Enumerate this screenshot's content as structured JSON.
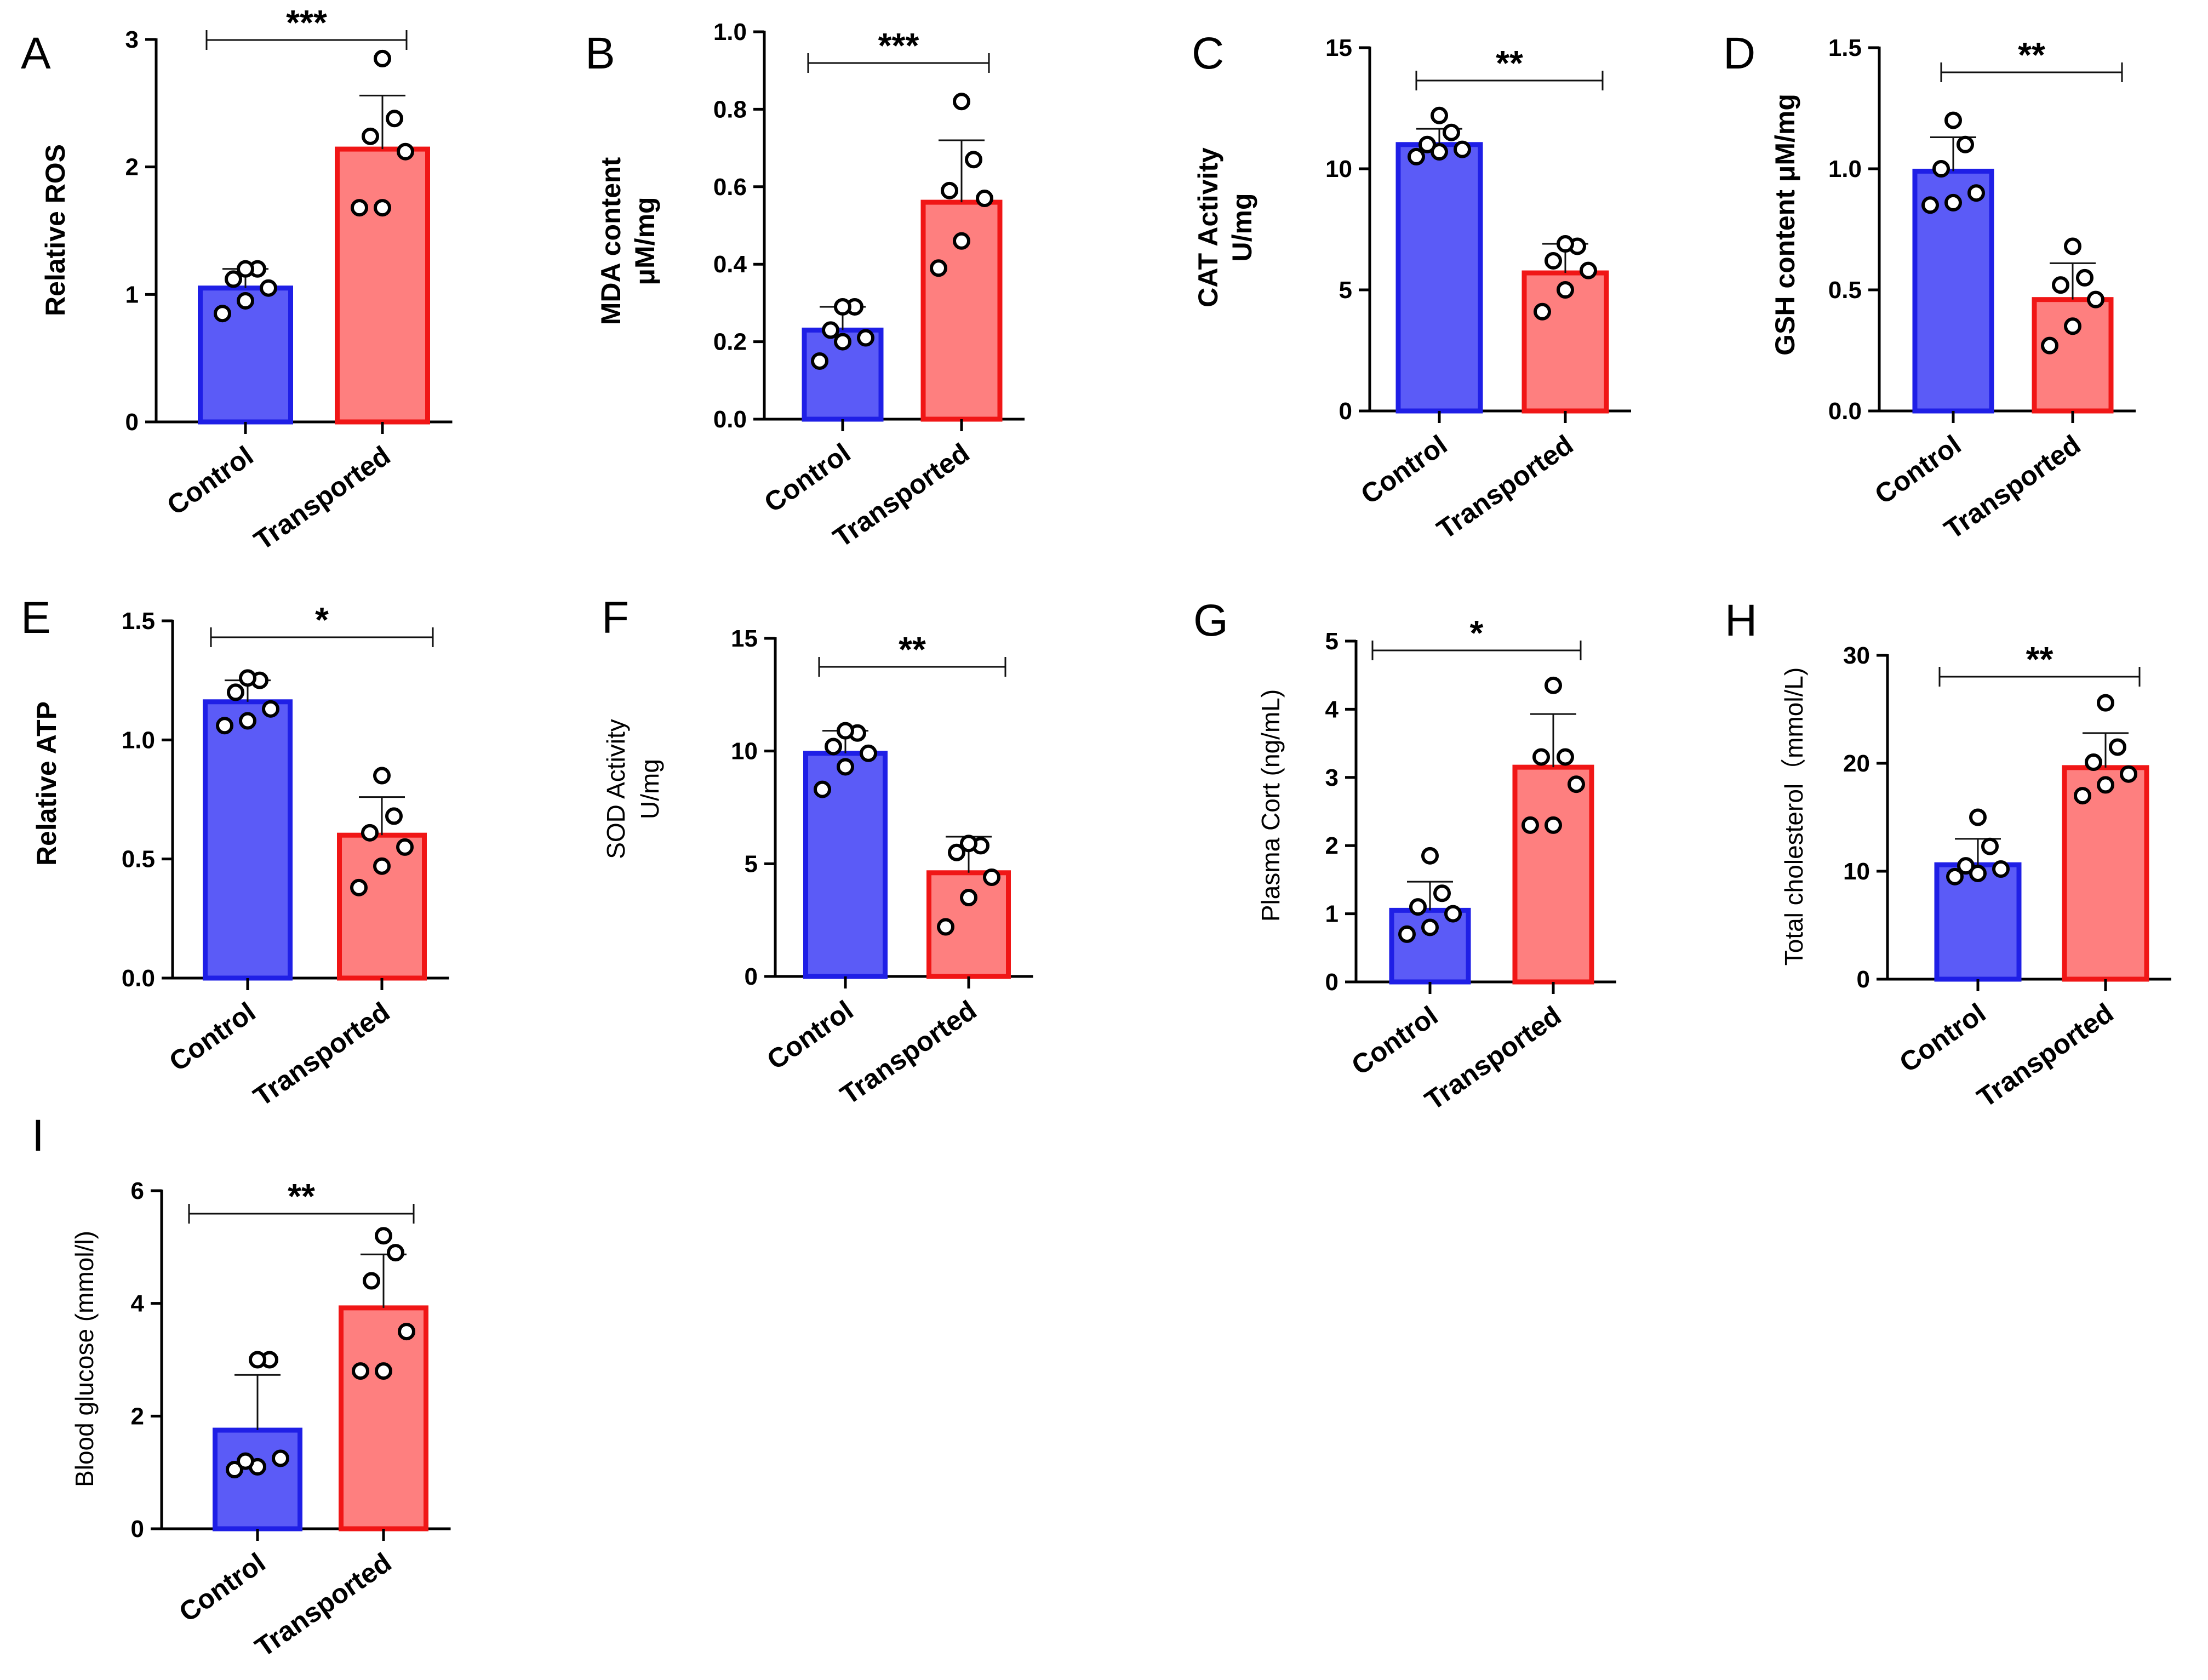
{
  "colors": {
    "control_fill": "#5b5bf7",
    "control_stroke": "#1f1fe6",
    "transported_fill": "#fe7f7f",
    "transported_stroke": "#f01616"
  },
  "chart_data": [
    {
      "panel": "A",
      "type": "bar",
      "ylabel": [
        "Relative ROS"
      ],
      "categories": [
        "Control",
        "Transported"
      ],
      "ylim": [
        0,
        3
      ],
      "yticks": [
        "0",
        "1",
        "2",
        "3"
      ],
      "values": [
        1.05,
        2.14
      ],
      "sd": [
        0.15,
        0.42
      ],
      "points": [
        [
          0.85,
          0.95,
          1.05,
          1.12,
          1.2,
          1.2
        ],
        [
          1.68,
          1.68,
          2.12,
          2.24,
          2.38,
          2.85
        ]
      ],
      "significance": "***"
    },
    {
      "panel": "B",
      "type": "bar",
      "ylabel": [
        "MDA content",
        "μM/mg"
      ],
      "categories": [
        "Control",
        "Transported"
      ],
      "ylim": [
        0,
        1.0
      ],
      "yticks": [
        "0.0",
        "0.2",
        "0.4",
        "0.6",
        "0.8",
        "1.0"
      ],
      "values": [
        0.23,
        0.56
      ],
      "sd": [
        0.06,
        0.16
      ],
      "points": [
        [
          0.15,
          0.2,
          0.21,
          0.23,
          0.29,
          0.29
        ],
        [
          0.39,
          0.46,
          0.57,
          0.59,
          0.67,
          0.82
        ]
      ],
      "significance": "***"
    },
    {
      "panel": "C",
      "type": "bar",
      "ylabel": [
        "CAT Activity",
        "U/mg"
      ],
      "categories": [
        "Control",
        "Transported"
      ],
      "ylim": [
        0,
        15
      ],
      "yticks": [
        "0",
        "5",
        "10",
        "15"
      ],
      "values": [
        11.0,
        5.7
      ],
      "sd": [
        0.65,
        1.2
      ],
      "points": [
        [
          10.5,
          10.7,
          10.8,
          11.0,
          11.5,
          12.2
        ],
        [
          4.1,
          5.0,
          5.8,
          6.2,
          6.8,
          6.9
        ]
      ],
      "significance": "**"
    },
    {
      "panel": "D",
      "type": "bar",
      "ylabel": [
        "GSH content μM/mg"
      ],
      "categories": [
        "Control",
        "Transported"
      ],
      "ylim": [
        0,
        1.5
      ],
      "yticks": [
        "0.0",
        "0.5",
        "1.0",
        "1.5"
      ],
      "values": [
        0.99,
        0.46
      ],
      "sd": [
        0.14,
        0.15
      ],
      "points": [
        [
          0.85,
          0.86,
          0.9,
          1.0,
          1.1,
          1.2
        ],
        [
          0.27,
          0.35,
          0.46,
          0.52,
          0.55,
          0.68
        ]
      ],
      "significance": "**"
    },
    {
      "panel": "E",
      "type": "bar",
      "ylabel": [
        "Relative ATP"
      ],
      "categories": [
        "Control",
        "Transported"
      ],
      "ylim": [
        0,
        1.5
      ],
      "yticks": [
        "0.0",
        "0.5",
        "1.0",
        "1.5"
      ],
      "values": [
        1.16,
        0.6
      ],
      "sd": [
        0.09,
        0.16
      ],
      "points": [
        [
          1.06,
          1.08,
          1.13,
          1.2,
          1.25,
          1.26
        ],
        [
          0.38,
          0.47,
          0.55,
          0.61,
          0.68,
          0.85
        ]
      ],
      "significance": "*"
    },
    {
      "panel": "F",
      "type": "bar",
      "ylabel": [
        "SOD Activity",
        "U/mg"
      ],
      "categories": [
        "Control",
        "Transported"
      ],
      "ylim": [
        0,
        15
      ],
      "yticks": [
        "0",
        "5",
        "10",
        "15"
      ],
      "values": [
        9.9,
        4.6
      ],
      "sd": [
        1.0,
        1.6
      ],
      "points": [
        [
          8.3,
          9.3,
          9.9,
          10.2,
          10.8,
          10.9
        ],
        [
          2.2,
          3.5,
          4.4,
          5.5,
          5.8,
          5.9
        ]
      ],
      "significance": "**"
    },
    {
      "panel": "G",
      "type": "bar",
      "ylabel": [
        "Plasma Cort (ng/mL)"
      ],
      "categories": [
        "Control",
        "Transported"
      ],
      "ylim": [
        0,
        5
      ],
      "yticks": [
        "0",
        "1",
        "2",
        "3",
        "4",
        "5"
      ],
      "values": [
        1.05,
        3.15
      ],
      "sd": [
        0.42,
        0.78
      ],
      "points": [
        [
          0.7,
          0.8,
          1.0,
          1.1,
          1.3,
          1.85
        ],
        [
          2.3,
          2.3,
          2.9,
          3.3,
          3.3,
          4.35
        ]
      ],
      "significance": "*"
    },
    {
      "panel": "H",
      "type": "bar",
      "ylabel": [
        "Total cholesterol（mmol/L)"
      ],
      "categories": [
        "Control",
        "Transported"
      ],
      "ylim": [
        0,
        30
      ],
      "yticks": [
        "0",
        "10",
        "20",
        "30"
      ],
      "values": [
        10.6,
        19.6
      ],
      "sd": [
        2.4,
        3.2
      ],
      "points": [
        [
          9.5,
          9.8,
          10.2,
          10.5,
          12.3,
          15.0
        ],
        [
          17.0,
          18.0,
          19.0,
          20.1,
          21.5,
          25.6
        ]
      ],
      "significance": "**"
    },
    {
      "panel": "I",
      "type": "bar",
      "ylabel": [
        "Blood glucose (mmol/l)"
      ],
      "categories": [
        "Control",
        "Transported"
      ],
      "ylim": [
        0,
        6
      ],
      "yticks": [
        "0",
        "2",
        "4",
        "6"
      ],
      "values": [
        1.75,
        3.92
      ],
      "sd": [
        0.98,
        0.95
      ],
      "points": [
        [
          1.05,
          1.1,
          1.25,
          1.2,
          3.0,
          3.0
        ],
        [
          2.8,
          2.8,
          3.5,
          4.4,
          4.9,
          5.2
        ]
      ],
      "significance": "**"
    }
  ]
}
